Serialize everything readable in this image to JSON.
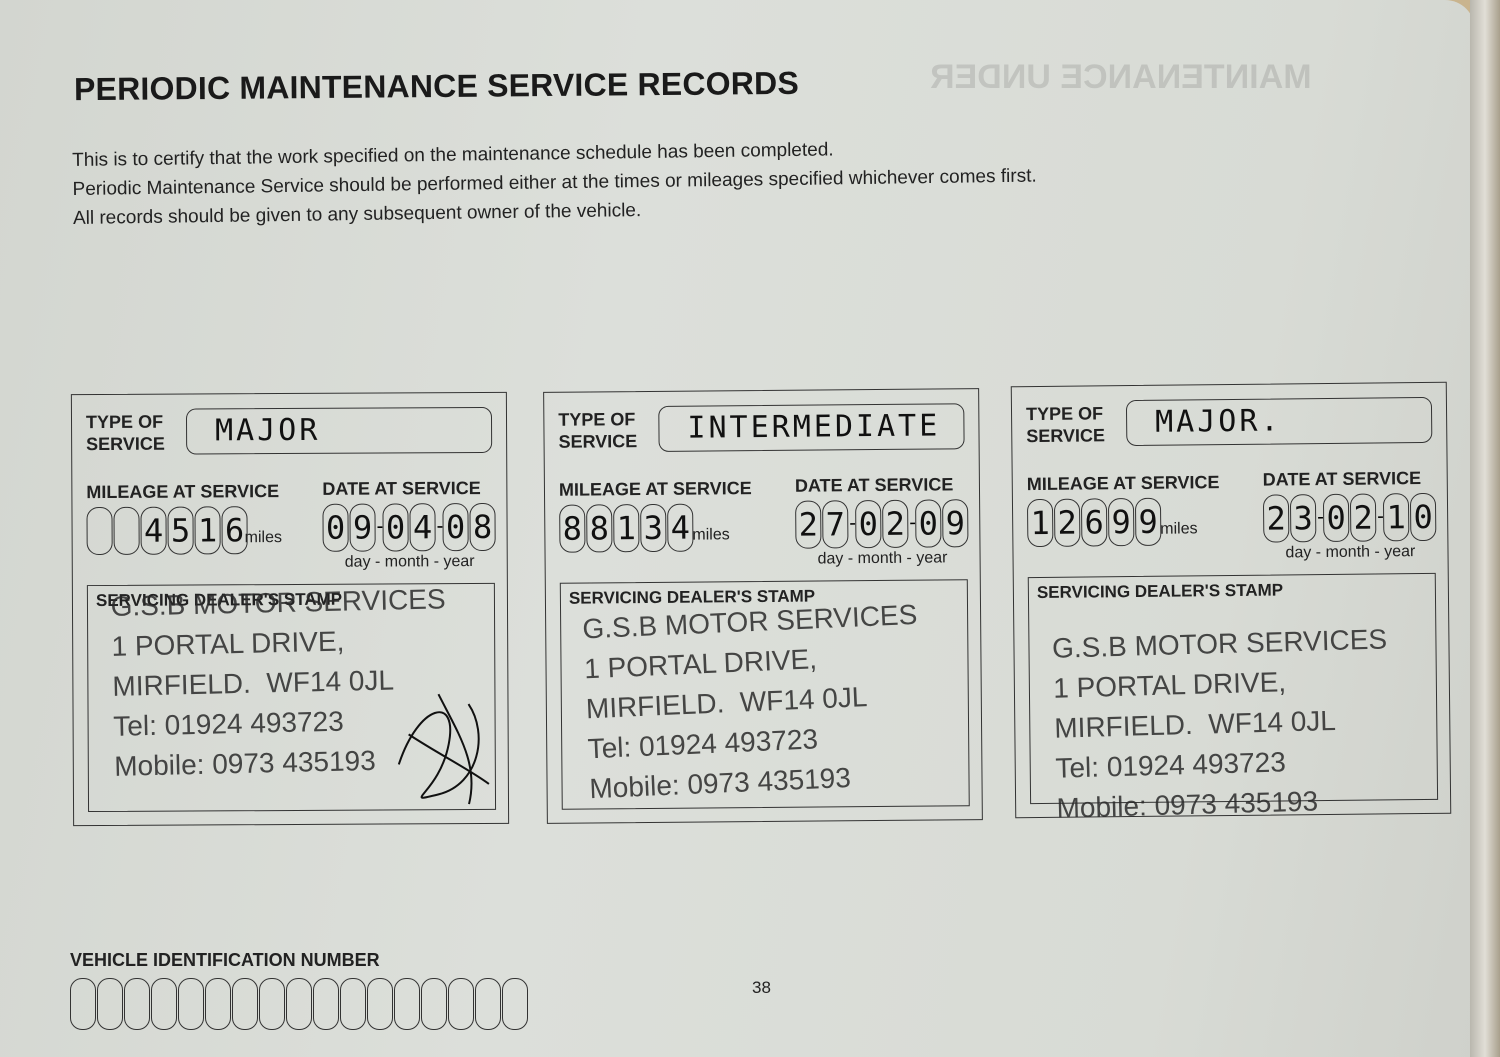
{
  "title": "PERIODIC MAINTENANCE SERVICE RECORDS",
  "ghost_text": "MAINTENANCE UNDER",
  "intro": [
    "This is to certify that the work specified on the maintenance schedule has been completed.",
    "Periodic Maintenance Service should be performed either at the times or mileages specified whichever comes first.",
    "All records should be given to any subsequent owner of the vehicle."
  ],
  "labels": {
    "type_of": "TYPE OF",
    "service": "SERVICE",
    "mileage": "MILEAGE AT SERVICE",
    "date": "DATE AT SERVICE",
    "miles": "miles",
    "date_format": "day - month - year",
    "stamp": "SERVICING DEALER'S STAMP"
  },
  "records": [
    {
      "type": "MAJOR",
      "mileage": [
        "",
        "",
        "4",
        "5",
        "1",
        "6"
      ],
      "date": [
        "0",
        "9",
        "0",
        "4",
        "0",
        "8"
      ],
      "stamp": [
        "G.S.B MOTOR SERVICES",
        "1 PORTAL DRIVE,",
        "MIRFIELD.  WF14 0JL",
        "Tel: 01924 493723",
        "Mobile: 0973 435193"
      ],
      "signed": true
    },
    {
      "type": "INTERMEDIATE",
      "mileage": [
        "8",
        "8",
        "1",
        "3",
        "4"
      ],
      "date": [
        "2",
        "7",
        "0",
        "2",
        "0",
        "9"
      ],
      "stamp": [
        "G.S.B MOTOR SERVICES",
        "1 PORTAL DRIVE,",
        "MIRFIELD.  WF14 0JL",
        "Tel: 01924 493723",
        "Mobile: 0973 435193"
      ],
      "signed": false
    },
    {
      "type": "MAJOR.",
      "mileage": [
        "1",
        "2",
        "6",
        "9",
        "9"
      ],
      "date": [
        "2",
        "3",
        "0",
        "2",
        "1",
        "0"
      ],
      "stamp": [
        "G.S.B MOTOR SERVICES",
        "1 PORTAL DRIVE,",
        "MIRFIELD.  WF14 0JL",
        "Tel: 01924 493723",
        "Mobile: 0973 435193"
      ],
      "signed": false
    }
  ],
  "vin_label": "VEHICLE IDENTIFICATION NUMBER",
  "vin_boxes": 17,
  "page_number": "38"
}
